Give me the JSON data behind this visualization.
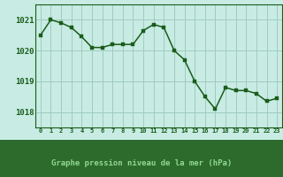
{
  "hours": [
    0,
    1,
    2,
    3,
    4,
    5,
    6,
    7,
    8,
    9,
    10,
    11,
    12,
    13,
    14,
    15,
    16,
    17,
    18,
    19,
    20,
    21,
    22,
    23
  ],
  "pressure": [
    1020.5,
    1021.0,
    1020.9,
    1020.75,
    1020.45,
    1020.1,
    1020.1,
    1020.2,
    1020.2,
    1020.2,
    1020.65,
    1020.85,
    1020.75,
    1020.0,
    1019.7,
    1019.0,
    1018.5,
    1018.1,
    1018.8,
    1018.7,
    1018.7,
    1018.6,
    1018.35,
    1018.45
  ],
  "line_color": "#1a5c1a",
  "marker_color": "#1a5c1a",
  "background_color": "#c8ece4",
  "grid_color": "#a0ccbf",
  "xlabel": "Graphe pression niveau de la mer (hPa)",
  "axis_label_color": "#1a5c1a",
  "tick_label_color": "#1a5c1a",
  "ylim": [
    1017.5,
    1021.5
  ],
  "yticks": [
    1018,
    1019,
    1020,
    1021
  ],
  "border_color": "#1a5c1a",
  "bottom_bar_color": "#2d6b2d",
  "bottom_bar_text_color": "#90d890"
}
